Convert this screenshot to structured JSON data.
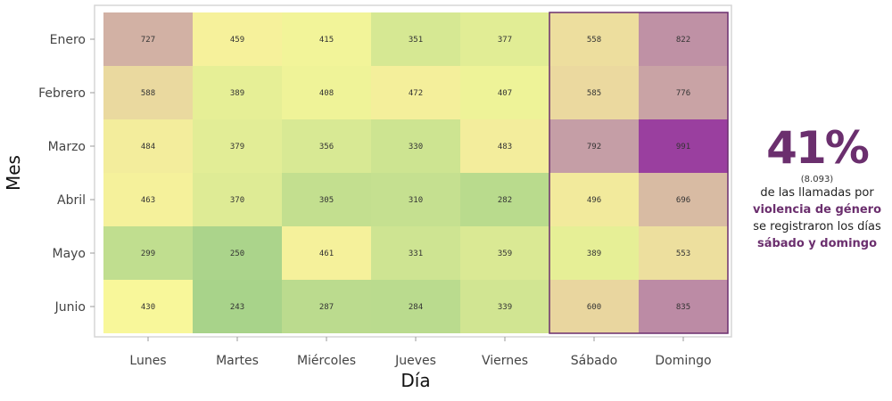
{
  "chart_data": {
    "type": "heatmap",
    "xlabel": "Día",
    "ylabel": "Mes",
    "x_categories": [
      "Lunes",
      "Martes",
      "Miércoles",
      "Jueves",
      "Viernes",
      "Sábado",
      "Domingo"
    ],
    "y_categories": [
      "Enero",
      "Febrero",
      "Marzo",
      "Abril",
      "Mayo",
      "Junio"
    ],
    "values": [
      [
        727,
        459,
        415,
        351,
        377,
        558,
        822
      ],
      [
        588,
        389,
        408,
        472,
        407,
        585,
        776
      ],
      [
        484,
        379,
        356,
        330,
        483,
        792,
        991
      ],
      [
        463,
        370,
        305,
        310,
        282,
        496,
        696
      ],
      [
        299,
        250,
        461,
        331,
        359,
        389,
        553
      ],
      [
        430,
        243,
        287,
        284,
        339,
        600,
        835
      ]
    ],
    "color_scale": [
      "#a8d38a",
      "#f8f79a",
      "#e8d3a0",
      "#c39aa6",
      "#9a3f9f"
    ],
    "value_range": [
      243,
      991
    ],
    "highlight": {
      "columns": [
        "Sábado",
        "Domingo"
      ],
      "color": "#6b2f6e"
    }
  },
  "annotation": {
    "big": "41%",
    "count": "(8.093)",
    "line1": "de las llamadas por",
    "line2": "violencia de género",
    "line3": "se registraron los días",
    "line4": "sábado y domingo"
  }
}
